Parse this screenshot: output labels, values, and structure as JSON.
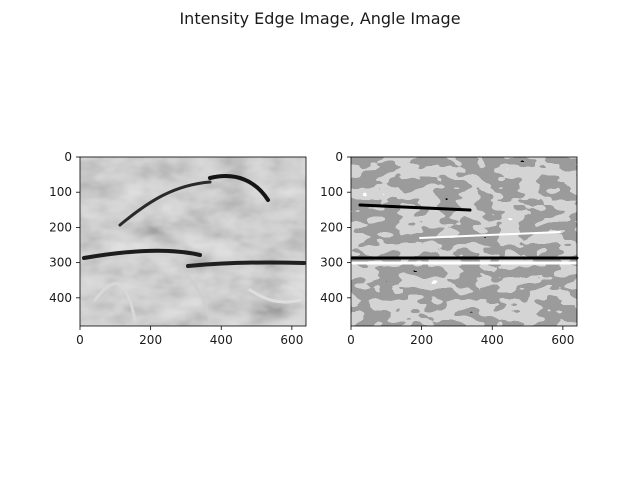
{
  "figure": {
    "suptitle": "Intensity Edge Image, Angle Image",
    "colors": {
      "background": "#ffffff",
      "axis": "#000000",
      "text": "#1a1a1a"
    }
  },
  "chart_data": [
    {
      "type": "heatmap",
      "name": "intensity-edge-image",
      "title": "",
      "xlabel": "",
      "ylabel": "",
      "colormap": "gray",
      "xlim": [
        0,
        640
      ],
      "ylim": [
        480,
        0
      ],
      "x_ticks": [
        0,
        200,
        400,
        600
      ],
      "y_ticks": [
        0,
        100,
        200,
        300,
        400
      ],
      "grid": false
    },
    {
      "type": "heatmap",
      "name": "angle-image",
      "title": "",
      "xlabel": "",
      "ylabel": "",
      "colormap": "gray",
      "levels": [
        0,
        0.33,
        0.66,
        1
      ],
      "xlim": [
        0,
        640
      ],
      "ylim": [
        480,
        0
      ],
      "x_ticks": [
        0,
        200,
        400,
        600
      ],
      "y_ticks": [
        0,
        100,
        200,
        300,
        400
      ],
      "grid": false
    }
  ]
}
